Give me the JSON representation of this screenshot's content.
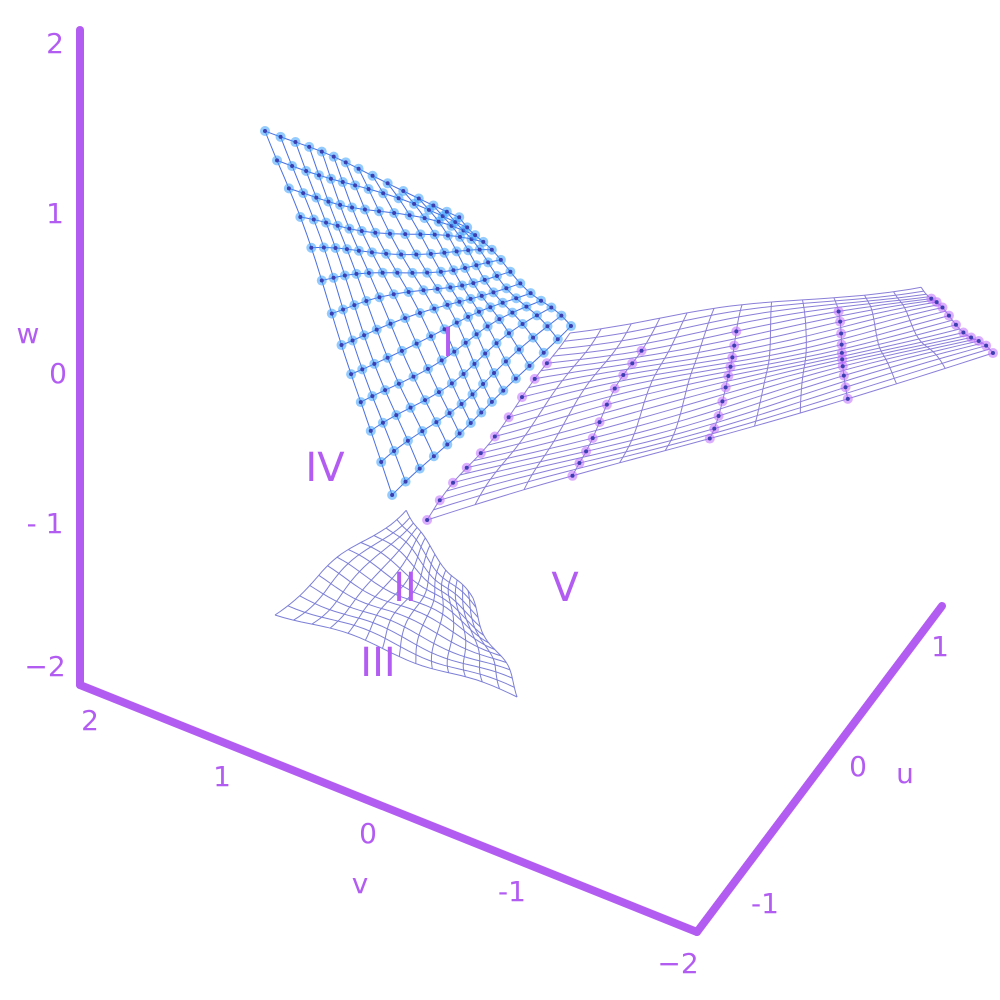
{
  "axes": {
    "w": {
      "label": "w",
      "ticks": [
        "2",
        "1",
        "0",
        "- 1",
        "−2"
      ]
    },
    "v": {
      "label": "v",
      "ticks": [
        "2",
        "1",
        "0",
        "-1",
        "−2"
      ]
    },
    "u": {
      "label": "u",
      "ticks": [
        "1",
        "0",
        "-1"
      ]
    }
  },
  "regions": [
    "I",
    "II",
    "III",
    "IV",
    "V"
  ]
}
